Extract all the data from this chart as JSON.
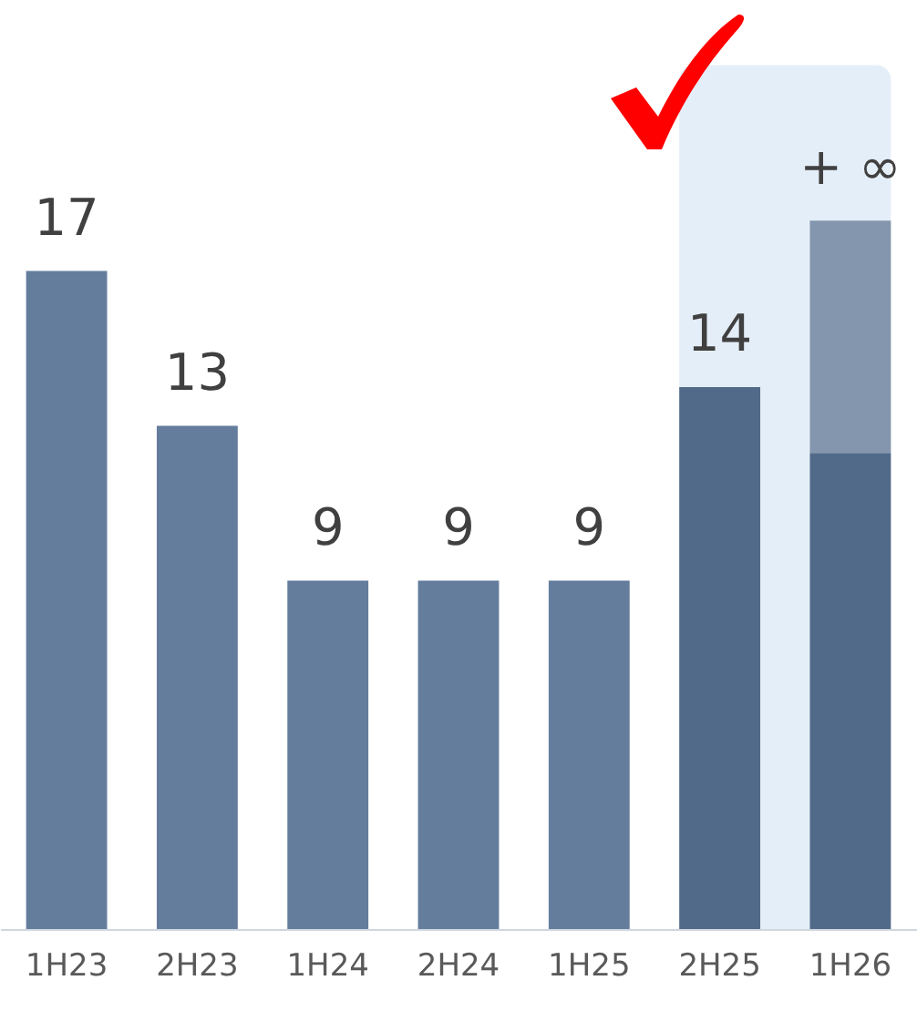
{
  "chart_data": {
    "type": "bar",
    "stacked": true,
    "categories": [
      "1H23",
      "2H23",
      "1H24",
      "2H24",
      "1H25",
      "2H25",
      "1H26"
    ],
    "series": [
      {
        "colors": [
          "#647d9d",
          "#647d9d",
          "#647d9d",
          "#647d9d",
          "#647d9d",
          "#526a89",
          "#526a89"
        ],
        "values": [
          17,
          13,
          9,
          9,
          9,
          14,
          12.3
        ],
        "value_labels": [
          "17",
          "13",
          "9",
          "9",
          "9",
          "14",
          null
        ]
      },
      {
        "color": "#8496ad",
        "values": [
          null,
          null,
          null,
          null,
          null,
          null,
          6
        ],
        "value_labels": [
          null,
          null,
          null,
          null,
          null,
          null,
          "+ ∞"
        ]
      }
    ],
    "bands": [
      {
        "axis": "x",
        "from": "2H25",
        "to": "1H26",
        "color": "#e4eef8"
      }
    ],
    "ylim": [
      0,
      24
    ],
    "tick_labels": "x",
    "grid": false
  }
}
